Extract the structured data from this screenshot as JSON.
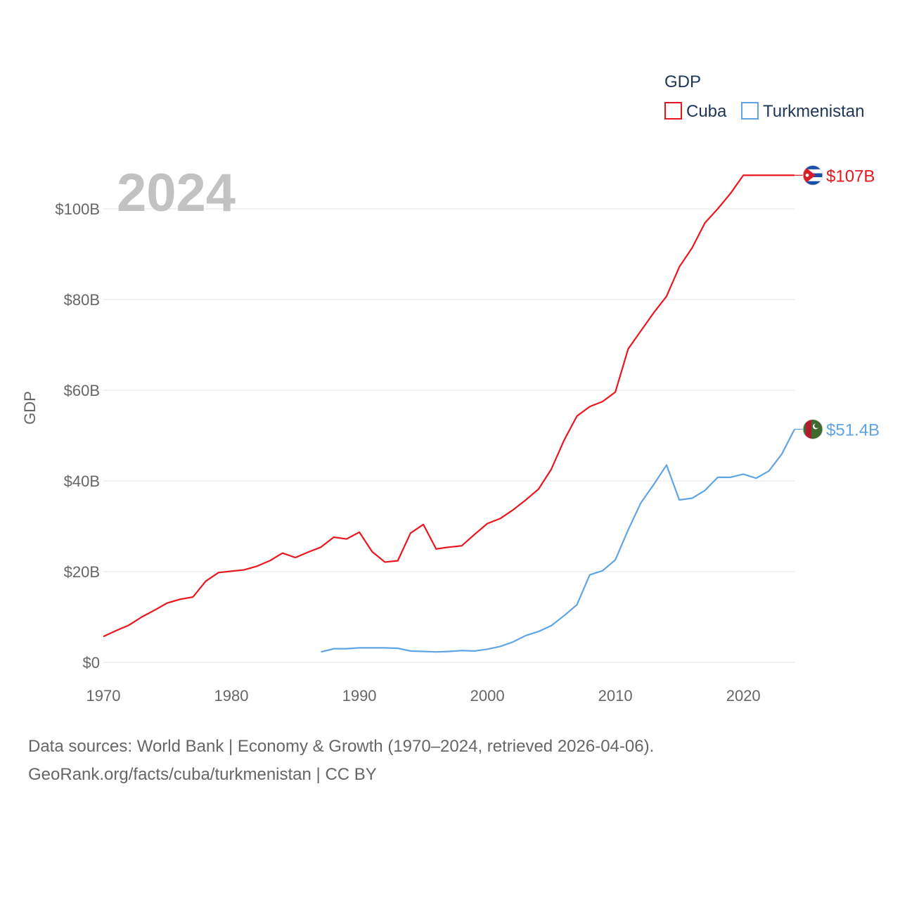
{
  "chart_data": {
    "type": "line",
    "year_label": "2024",
    "ylabel": "GDP",
    "xlabel": "",
    "legend_title": "GDP",
    "legend_position": "top-right",
    "xlim": [
      1970,
      2024
    ],
    "ylim": [
      0,
      110
    ],
    "x_ticks": [
      1970,
      1980,
      1990,
      2000,
      2010,
      2020
    ],
    "y_ticks": [
      0,
      20,
      40,
      60,
      80,
      100
    ],
    "y_tick_labels": [
      "$0",
      "$20B",
      "$40B",
      "$60B",
      "$80B",
      "$100B"
    ],
    "grid": true,
    "series": [
      {
        "name": "Cuba",
        "color": "#e8171f",
        "end_label": "$107B",
        "end_value": 107.4,
        "flag_icon": "cuba-flag-icon",
        "x": [
          1970,
          1971,
          1972,
          1973,
          1974,
          1975,
          1976,
          1977,
          1978,
          1979,
          1980,
          1981,
          1982,
          1983,
          1984,
          1985,
          1986,
          1987,
          1988,
          1989,
          1990,
          1991,
          1992,
          1993,
          1994,
          1995,
          1996,
          1997,
          1998,
          1999,
          2000,
          2001,
          2002,
          2003,
          2004,
          2005,
          2006,
          2007,
          2008,
          2009,
          2010,
          2011,
          2012,
          2013,
          2014,
          2015,
          2016,
          2017,
          2018,
          2019,
          2020
        ],
        "values": [
          5.7,
          7.0,
          8.2,
          10.0,
          11.5,
          13.1,
          13.9,
          14.4,
          17.9,
          19.8,
          20.1,
          20.4,
          21.2,
          22.4,
          24.1,
          23.1,
          24.3,
          25.4,
          27.6,
          27.2,
          28.7,
          24.4,
          22.1,
          22.4,
          28.5,
          30.4,
          25.0,
          25.4,
          25.7,
          28.2,
          30.6,
          31.7,
          33.6,
          35.8,
          38.2,
          42.6,
          49.0,
          54.3,
          56.4,
          57.5,
          59.6,
          69.1,
          73.1,
          77.1,
          80.7,
          87.2,
          91.4,
          96.9,
          100.0,
          103.4,
          107.4
        ]
      },
      {
        "name": "Turkmenistan",
        "color": "#5fa5e6",
        "end_label": "$51.4B",
        "end_value": 51.4,
        "flag_icon": "turkmenistan-flag-icon",
        "x": [
          1987,
          1988,
          1989,
          1990,
          1991,
          1992,
          1993,
          1994,
          1995,
          1996,
          1997,
          1998,
          1999,
          2000,
          2001,
          2002,
          2003,
          2004,
          2005,
          2006,
          2007,
          2008,
          2009,
          2010,
          2011,
          2012,
          2013,
          2014,
          2015,
          2016,
          2017,
          2018,
          2019,
          2020,
          2021,
          2022,
          2023,
          2024
        ],
        "values": [
          2.3,
          3.0,
          3.0,
          3.2,
          3.2,
          3.2,
          3.1,
          2.5,
          2.4,
          2.3,
          2.4,
          2.6,
          2.5,
          2.9,
          3.5,
          4.5,
          5.9,
          6.8,
          8.1,
          10.3,
          12.7,
          19.3,
          20.2,
          22.6,
          29.2,
          35.2,
          39.2,
          43.5,
          35.8,
          36.2,
          37.9,
          40.8,
          40.8,
          41.5,
          40.6,
          42.2,
          45.9,
          51.4
        ]
      }
    ]
  },
  "footer": {
    "line1": "Data sources: World Bank | Economy & Growth (1970–2024, retrieved 2026-04-06).",
    "line2": "GeoRank.org/facts/cuba/turkmenistan | CC BY"
  }
}
